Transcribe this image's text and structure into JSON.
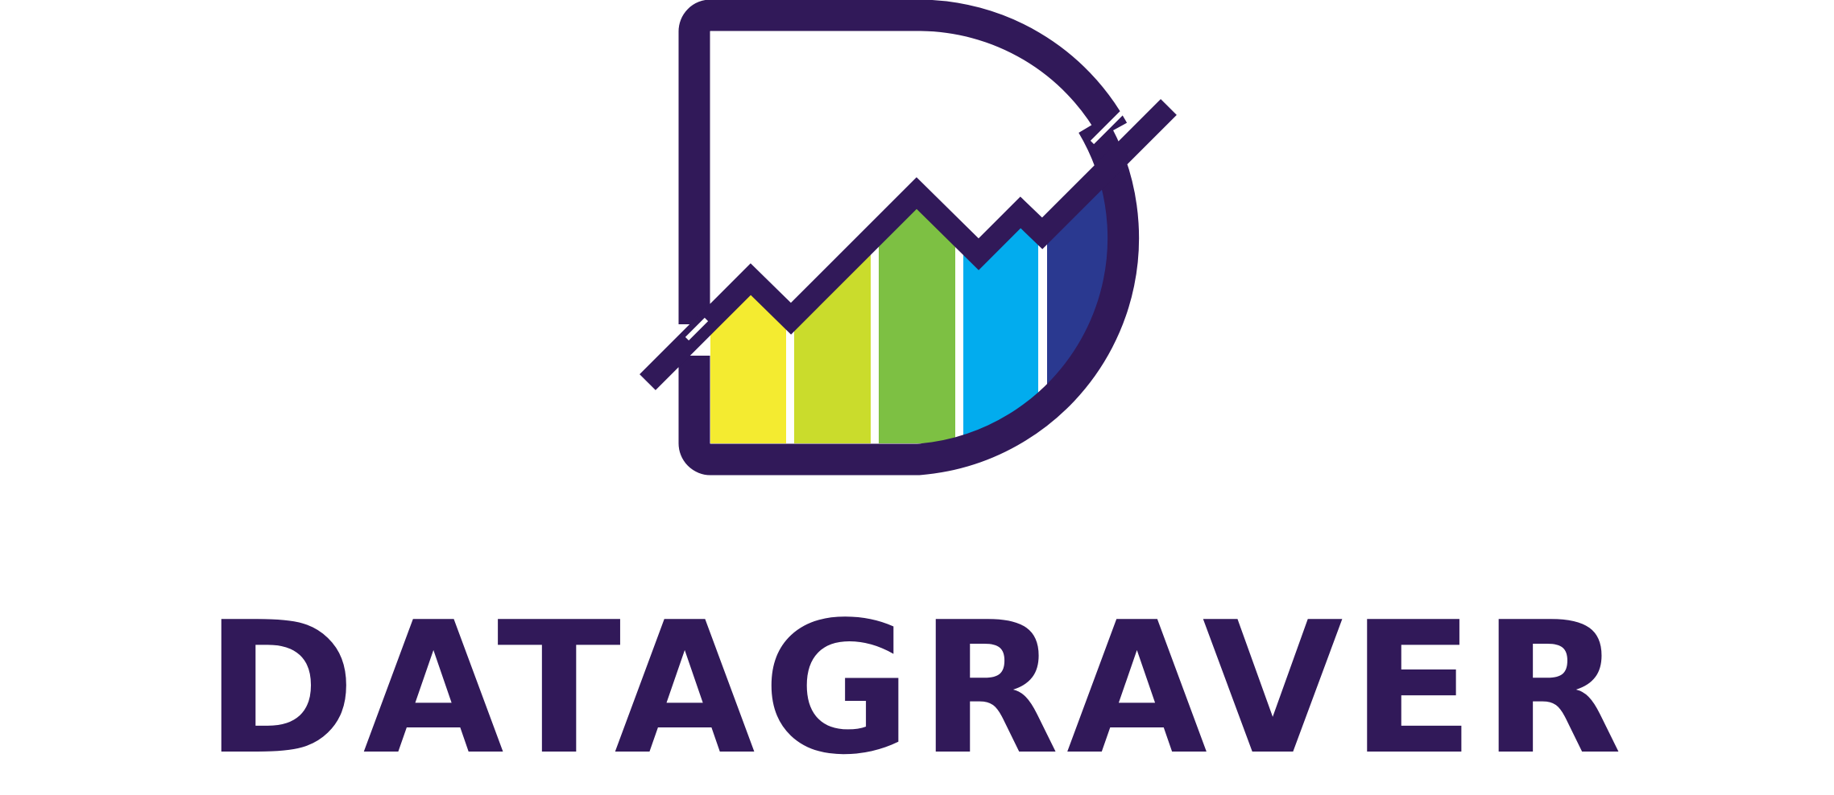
{
  "brand": {
    "wordmark": "DATAGRAVER"
  },
  "colors": {
    "primary": "#311959",
    "bar_yellow": "#F4EB30",
    "bar_lime": "#CADC2C",
    "bar_green": "#7DC043",
    "bar_blue": "#02ACEE",
    "bar_navy": "#2A3990",
    "background": "#FFFFFF"
  },
  "icons": {
    "logo": "letter-d-with-rising-trend-line-bar-chart-icon"
  }
}
